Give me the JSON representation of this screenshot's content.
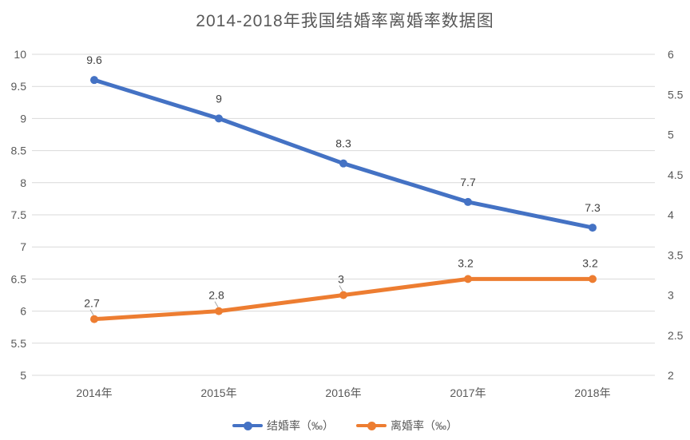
{
  "title": "2014-2018年我国结婚率离婚率数据图",
  "chart_data": {
    "type": "line",
    "title": "2014-2018年我国结婚率离婚率数据图",
    "categories": [
      "2014年",
      "2015年",
      "2016年",
      "2017年",
      "2018年"
    ],
    "series": [
      {
        "name": "结婚率（‰）",
        "axis": "left",
        "color": "#4472C4",
        "values": [
          9.6,
          9,
          8.3,
          7.7,
          7.3
        ],
        "labels": [
          "9.6",
          "9",
          "8.3",
          "7.7",
          "7.3"
        ],
        "label_leader_lines": [
          false,
          false,
          false,
          false,
          false
        ]
      },
      {
        "name": "离婚率（‰）",
        "axis": "right",
        "color": "#ED7D31",
        "values": [
          2.7,
          2.8,
          3,
          3.2,
          3.2
        ],
        "labels": [
          "2.7",
          "2.8",
          "3",
          "3.2",
          "3.2"
        ],
        "label_leader_lines": [
          true,
          true,
          true,
          false,
          false
        ]
      }
    ],
    "left_axis": {
      "min": 5,
      "max": 10,
      "step": 0.5,
      "tick_labels": [
        "10",
        "9.5",
        "9",
        "8.5",
        "8",
        "7.5",
        "7",
        "6.5",
        "6",
        "5.5",
        "5"
      ]
    },
    "right_axis": {
      "min": 2,
      "max": 6,
      "step": 0.5,
      "tick_labels": [
        "6",
        "5.5",
        "5",
        "4.5",
        "4",
        "3.5",
        "3",
        "2.5",
        "2"
      ]
    },
    "grid": "horizontal",
    "legend_position": "bottom",
    "colors": {
      "marriage_line": "#4472C4",
      "divorce_line": "#ED7D31",
      "gridline": "#D9D9D9",
      "axis_text": "#595959",
      "data_label": "#404040",
      "leader_line": "#A6A6A6",
      "title_text": "#595959"
    }
  }
}
